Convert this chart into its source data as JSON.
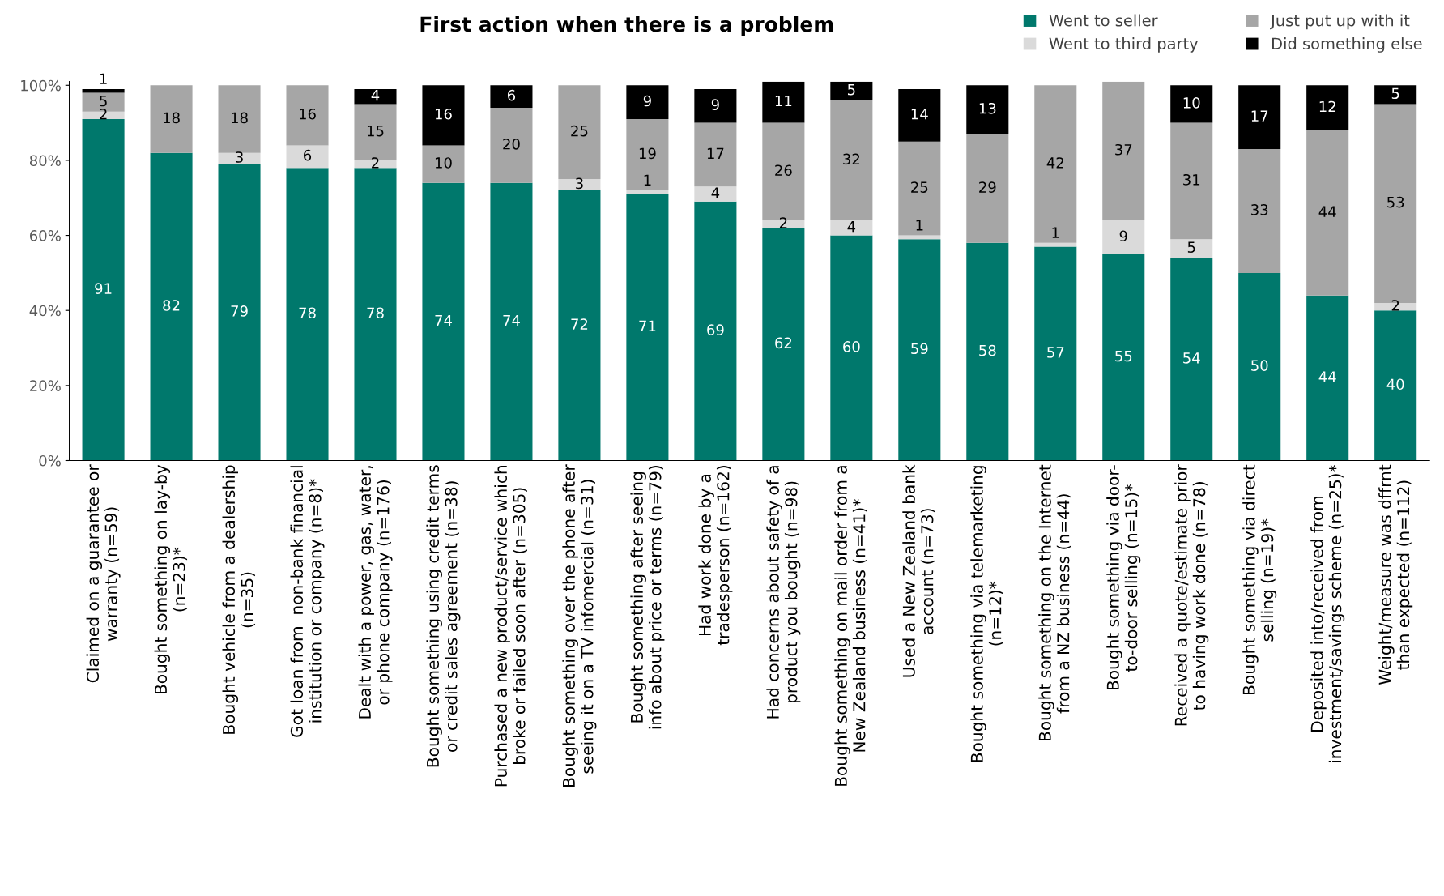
{
  "chart_data": {
    "type": "bar",
    "stacked": true,
    "title": "First action when there is a problem",
    "categories": [
      "Claimed on a guarantee or\nwarranty (n=59)",
      "Bought something on lay-by\n(n=23)*",
      "Bought vehicle from a dealership\n(n=35)",
      "Got loan from  non-bank financial\ninstitution or company (n=8)*",
      "Dealt with a power, gas, water,\nor phone company (n=176)",
      "Bought something using credit terms\nor credit sales agreement (n=38)",
      "Purchased a new product/service which\nbroke or failed soon after (n=305)",
      "Bought something over the phone after\nseeing it on a TV infomercial (n=31)",
      "Bought something after seeing\ninfo about price or terms (n=79)",
      "Had work done by a\ntradesperson (n=162)",
      "Had concerns about safety of a\nproduct you bought (n=98)",
      "Bought something on mail order from a\nNew Zealand business (n=41)*",
      "Used a New Zealand bank\naccount (n=73)",
      "Bought something via telemarketing\n(n=12)*",
      "Bought something on the Internet\nfrom a NZ business (n=44)",
      "Bought something via door-\nto-door selling (n=15)*",
      "Received a quote/estimate prior\nto having work done (n=78)",
      "Bought something via direct\nselling (n=19)*",
      "Deposited into/received from\ninvestment/savings scheme (n=25)*",
      "Weight/measure was dffrnt\nthan expected (n=112)"
    ],
    "series": [
      {
        "name": "Went to seller",
        "color": "#00786c",
        "values": [
          91,
          82,
          79,
          78,
          78,
          74,
          74,
          72,
          71,
          69,
          62,
          60,
          59,
          58,
          57,
          55,
          54,
          50,
          44,
          40
        ]
      },
      {
        "name": "Went to third party",
        "color": "#dadada",
        "values": [
          2,
          null,
          3,
          6,
          2,
          null,
          null,
          3,
          1,
          4,
          2,
          4,
          1,
          null,
          1,
          9,
          5,
          null,
          null,
          2
        ]
      },
      {
        "name": "Just put up with it",
        "color": "#a6a6a6",
        "values": [
          5,
          18,
          18,
          16,
          15,
          10,
          20,
          25,
          19,
          17,
          26,
          32,
          25,
          29,
          42,
          37,
          31,
          33,
          44,
          53
        ]
      },
      {
        "name": "Did something else",
        "color": "#000000",
        "values": [
          1,
          null,
          null,
          null,
          4,
          16,
          6,
          null,
          9,
          9,
          11,
          5,
          14,
          13,
          null,
          null,
          10,
          17,
          12,
          5
        ]
      }
    ],
    "ylim": [
      0,
      101
    ],
    "yticks": [
      {
        "value": 0,
        "label": "0%"
      },
      {
        "value": 20,
        "label": "20%"
      },
      {
        "value": 40,
        "label": "40%"
      },
      {
        "value": 60,
        "label": "60%"
      },
      {
        "value": 80,
        "label": "80%"
      },
      {
        "value": 100,
        "label": "100%"
      }
    ],
    "data_labels": true,
    "legend": "top right",
    "grid": false
  }
}
